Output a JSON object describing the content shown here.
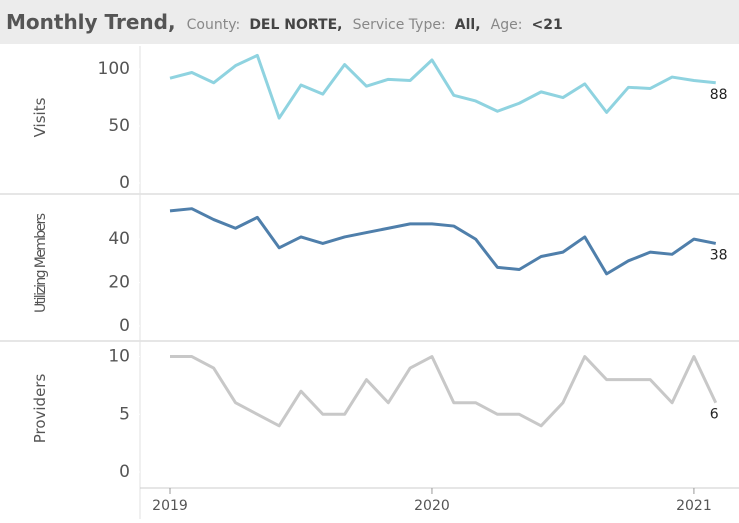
{
  "header": {
    "title": "Monthly Trend,",
    "filters": [
      {
        "label": "County:",
        "value": "DEL NORTE,"
      },
      {
        "label": "Service Type:",
        "value": "All,"
      },
      {
        "label": "Age:",
        "value": "<21"
      }
    ]
  },
  "chart_data": [
    {
      "type": "line",
      "ylabel": "Visits",
      "x": [
        "2019-01",
        "2019-02",
        "2019-03",
        "2019-04",
        "2019-05",
        "2019-06",
        "2019-07",
        "2019-08",
        "2019-09",
        "2019-10",
        "2019-11",
        "2019-12",
        "2020-01",
        "2020-02",
        "2020-03",
        "2020-04",
        "2020-05",
        "2020-06",
        "2020-07",
        "2020-08",
        "2020-09",
        "2020-10",
        "2020-11",
        "2020-12",
        "2021-01",
        "2021-02"
      ],
      "series": [
        {
          "name": "Visits",
          "color": "#8fd3e0",
          "values": [
            92,
            97,
            88,
            103,
            112,
            57,
            86,
            78,
            104,
            85,
            91,
            90,
            108,
            77,
            72,
            63,
            70,
            80,
            75,
            87,
            62,
            84,
            83,
            93,
            90,
            88
          ]
        }
      ],
      "ylim": [
        0,
        115
      ],
      "yticks": [
        0,
        50,
        100
      ]
    },
    {
      "type": "line",
      "ylabel": "Utilizing Members",
      "x": [
        "2019-01",
        "2019-02",
        "2019-03",
        "2019-04",
        "2019-05",
        "2019-06",
        "2019-07",
        "2019-08",
        "2019-09",
        "2019-10",
        "2019-11",
        "2019-12",
        "2020-01",
        "2020-02",
        "2020-03",
        "2020-04",
        "2020-05",
        "2020-06",
        "2020-07",
        "2020-08",
        "2020-09",
        "2020-10",
        "2020-11",
        "2020-12",
        "2021-01",
        "2021-02"
      ],
      "series": [
        {
          "name": "Utilizing Members",
          "color": "#4f7fab",
          "values": [
            53,
            54,
            49,
            45,
            50,
            36,
            41,
            38,
            41,
            43,
            45,
            47,
            47,
            46,
            40,
            27,
            26,
            32,
            34,
            41,
            24,
            30,
            34,
            33,
            40,
            38
          ]
        }
      ],
      "ylim": [
        0,
        58
      ],
      "yticks": [
        0,
        20,
        40
      ]
    },
    {
      "type": "line",
      "ylabel": "Providers",
      "x": [
        "2019-01",
        "2019-02",
        "2019-03",
        "2019-04",
        "2019-05",
        "2019-06",
        "2019-07",
        "2019-08",
        "2019-09",
        "2019-10",
        "2019-11",
        "2019-12",
        "2020-01",
        "2020-02",
        "2020-03",
        "2020-04",
        "2020-05",
        "2020-06",
        "2020-07",
        "2020-08",
        "2020-09",
        "2020-10",
        "2020-11",
        "2020-12",
        "2021-01",
        "2021-02"
      ],
      "series": [
        {
          "name": "Providers",
          "color": "#c8c8c8",
          "values": [
            10,
            10,
            9,
            6,
            5,
            4,
            7,
            5,
            5,
            8,
            6,
            9,
            10,
            6,
            6,
            5,
            5,
            4,
            6,
            10,
            8,
            8,
            8,
            6,
            10,
            6
          ]
        }
      ],
      "ylim": [
        0,
        11
      ],
      "yticks": [
        0,
        5,
        10
      ],
      "xticks": [
        {
          "value": "2019-01",
          "label": "2019"
        },
        {
          "value": "2020-01",
          "label": "2020"
        },
        {
          "value": "2021-01",
          "label": "2021"
        }
      ]
    }
  ]
}
